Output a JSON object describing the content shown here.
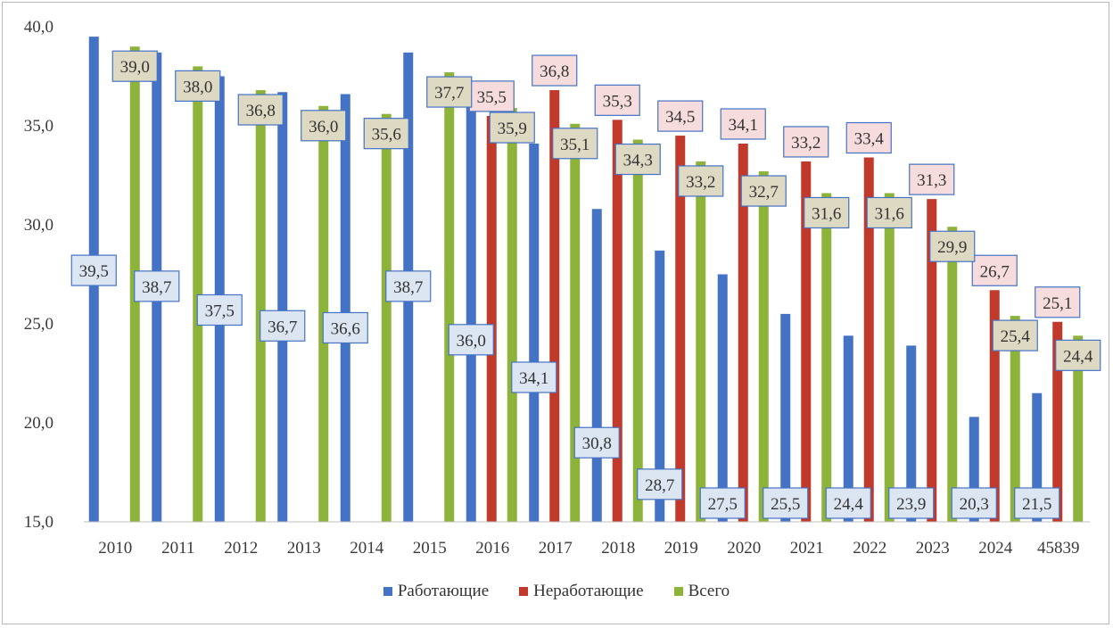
{
  "chart_data": {
    "type": "bar",
    "categories": [
      "2010",
      "2011",
      "2012",
      "2013",
      "2014",
      "2015",
      "2016",
      "2017",
      "2018",
      "2019",
      "2020",
      "2021",
      "2022",
      "2023",
      "2024",
      "45839"
    ],
    "ylim": [
      15,
      40
    ],
    "yticks": [
      "15,0",
      "20,0",
      "25,0",
      "30,0",
      "35,0",
      "40,0"
    ],
    "grid": false,
    "legend_position": "bottom",
    "series": [
      {
        "name": "Работающие",
        "color": "#4472c4",
        "label_bg": "#dce6f2",
        "label_border": "#4472c4",
        "values": [
          39.5,
          38.7,
          37.5,
          36.7,
          36.6,
          38.7,
          36.0,
          34.1,
          30.8,
          28.7,
          27.5,
          25.5,
          24.4,
          23.9,
          20.3,
          21.5
        ],
        "labels": [
          "39,5",
          "38,7",
          "37,5",
          "36,7",
          "36,6",
          "38,7",
          "36,0",
          "34,1",
          "30,8",
          "28,7",
          "27,5",
          "25,5",
          "24,4",
          "23,9",
          "20,3",
          "21,5"
        ]
      },
      {
        "name": "Неработающие",
        "color": "#c0392b",
        "label_bg": "#f6dcdc",
        "label_border": "#4472c4",
        "values": [
          null,
          null,
          null,
          null,
          null,
          null,
          35.5,
          36.8,
          35.3,
          34.5,
          34.1,
          33.2,
          33.4,
          31.3,
          26.7,
          25.1
        ],
        "labels": [
          "",
          "",
          "",
          "",
          "",
          "",
          "35,5",
          "36,8",
          "35,3",
          "34,5",
          "34,1",
          "33,2",
          "33,4",
          "31,3",
          "26,7",
          "25,1"
        ]
      },
      {
        "name": "Всего",
        "color": "#8db33a",
        "label_bg": "#ddd9c3",
        "label_border": "#4472c4",
        "values": [
          39.0,
          38.0,
          36.8,
          36.0,
          35.6,
          37.7,
          35.9,
          35.1,
          34.3,
          33.2,
          32.7,
          31.6,
          31.6,
          29.9,
          25.4,
          24.4
        ],
        "labels": [
          "39,0",
          "38,0",
          "36,8",
          "36,0",
          "35,6",
          "37,7",
          "35,9",
          "35,1",
          "34,3",
          "33,2",
          "32,7",
          "31,6",
          "31,6",
          "29,9",
          "25,4",
          "24,4"
        ]
      }
    ]
  }
}
